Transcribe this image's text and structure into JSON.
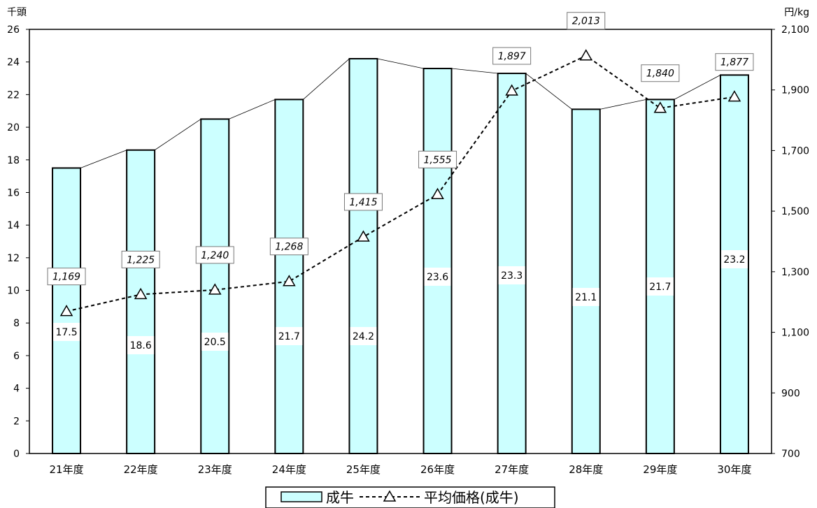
{
  "chart_data": {
    "type": "bar",
    "categories": [
      "21年度",
      "22年度",
      "23年度",
      "24年度",
      "25年度",
      "26年度",
      "27年度",
      "28年度",
      "29年度",
      "30年度"
    ],
    "series": [
      {
        "name": "成牛",
        "type": "bar",
        "axis": "left",
        "values": [
          17.5,
          18.6,
          20.5,
          21.7,
          24.2,
          23.6,
          23.3,
          21.1,
          21.7,
          23.2
        ]
      },
      {
        "name": "平均価格(成牛)",
        "type": "line",
        "axis": "right",
        "values": [
          1169,
          1225,
          1240,
          1268,
          1415,
          1555,
          1897,
          2013,
          1840,
          1877
        ]
      }
    ],
    "bar_labels": [
      "17.5",
      "18.6",
      "20.5",
      "21.7",
      "24.2",
      "23.6",
      "23.3",
      "21.1",
      "21.7",
      "23.2"
    ],
    "line_labels": [
      "1,169",
      "1,225",
      "1,240",
      "1,268",
      "1,415",
      "1,555",
      "1,897",
      "2,013",
      "1,840",
      "1,877"
    ],
    "ylabel_left": "千頭",
    "ylabel_right": "円/kg",
    "ylim_left": [
      0,
      26
    ],
    "ylim_right": [
      700,
      2100
    ],
    "yticks_left": [
      "0",
      "2",
      "4",
      "6",
      "8",
      "10",
      "12",
      "14",
      "16",
      "18",
      "20",
      "22",
      "24",
      "26"
    ],
    "yticks_right": [
      "700",
      "900",
      "1,100",
      "1,300",
      "1,500",
      "1,700",
      "1,900",
      "2,100"
    ],
    "grid": false,
    "legend_position": "bottom",
    "colors": {
      "bar_fill": "#ccffff",
      "bar_stroke": "#000000",
      "line": "#000000",
      "connector": "#000000"
    }
  }
}
